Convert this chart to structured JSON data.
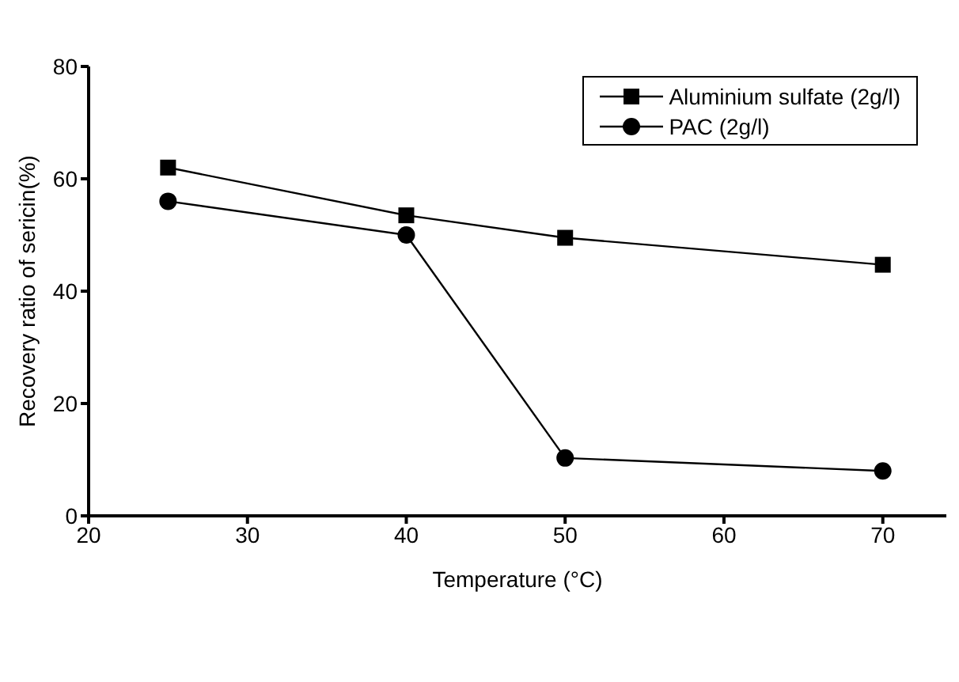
{
  "chart_data": {
    "type": "line",
    "xlabel": "Temperature (°C)",
    "ylabel": "Recovery ratio of sericin(%)",
    "x": [
      25,
      40,
      50,
      70
    ],
    "series": [
      {
        "name": "Aluminium sulfate (2g/l)",
        "color": "#000000",
        "marker": "square",
        "values": [
          62,
          53.5,
          49.5,
          44.7
        ]
      },
      {
        "name": "PAC (2g/l)",
        "color": "#000000",
        "marker": "circle",
        "values": [
          56,
          50,
          10.3,
          8
        ]
      }
    ],
    "xlim": [
      20,
      74
    ],
    "xticks": [
      20,
      30,
      40,
      50,
      60,
      70
    ],
    "ylim": [
      0,
      80
    ],
    "yticks": [
      0,
      20,
      40,
      60,
      80
    ],
    "grid": false,
    "legend": "top right",
    "line_style": "solid"
  }
}
